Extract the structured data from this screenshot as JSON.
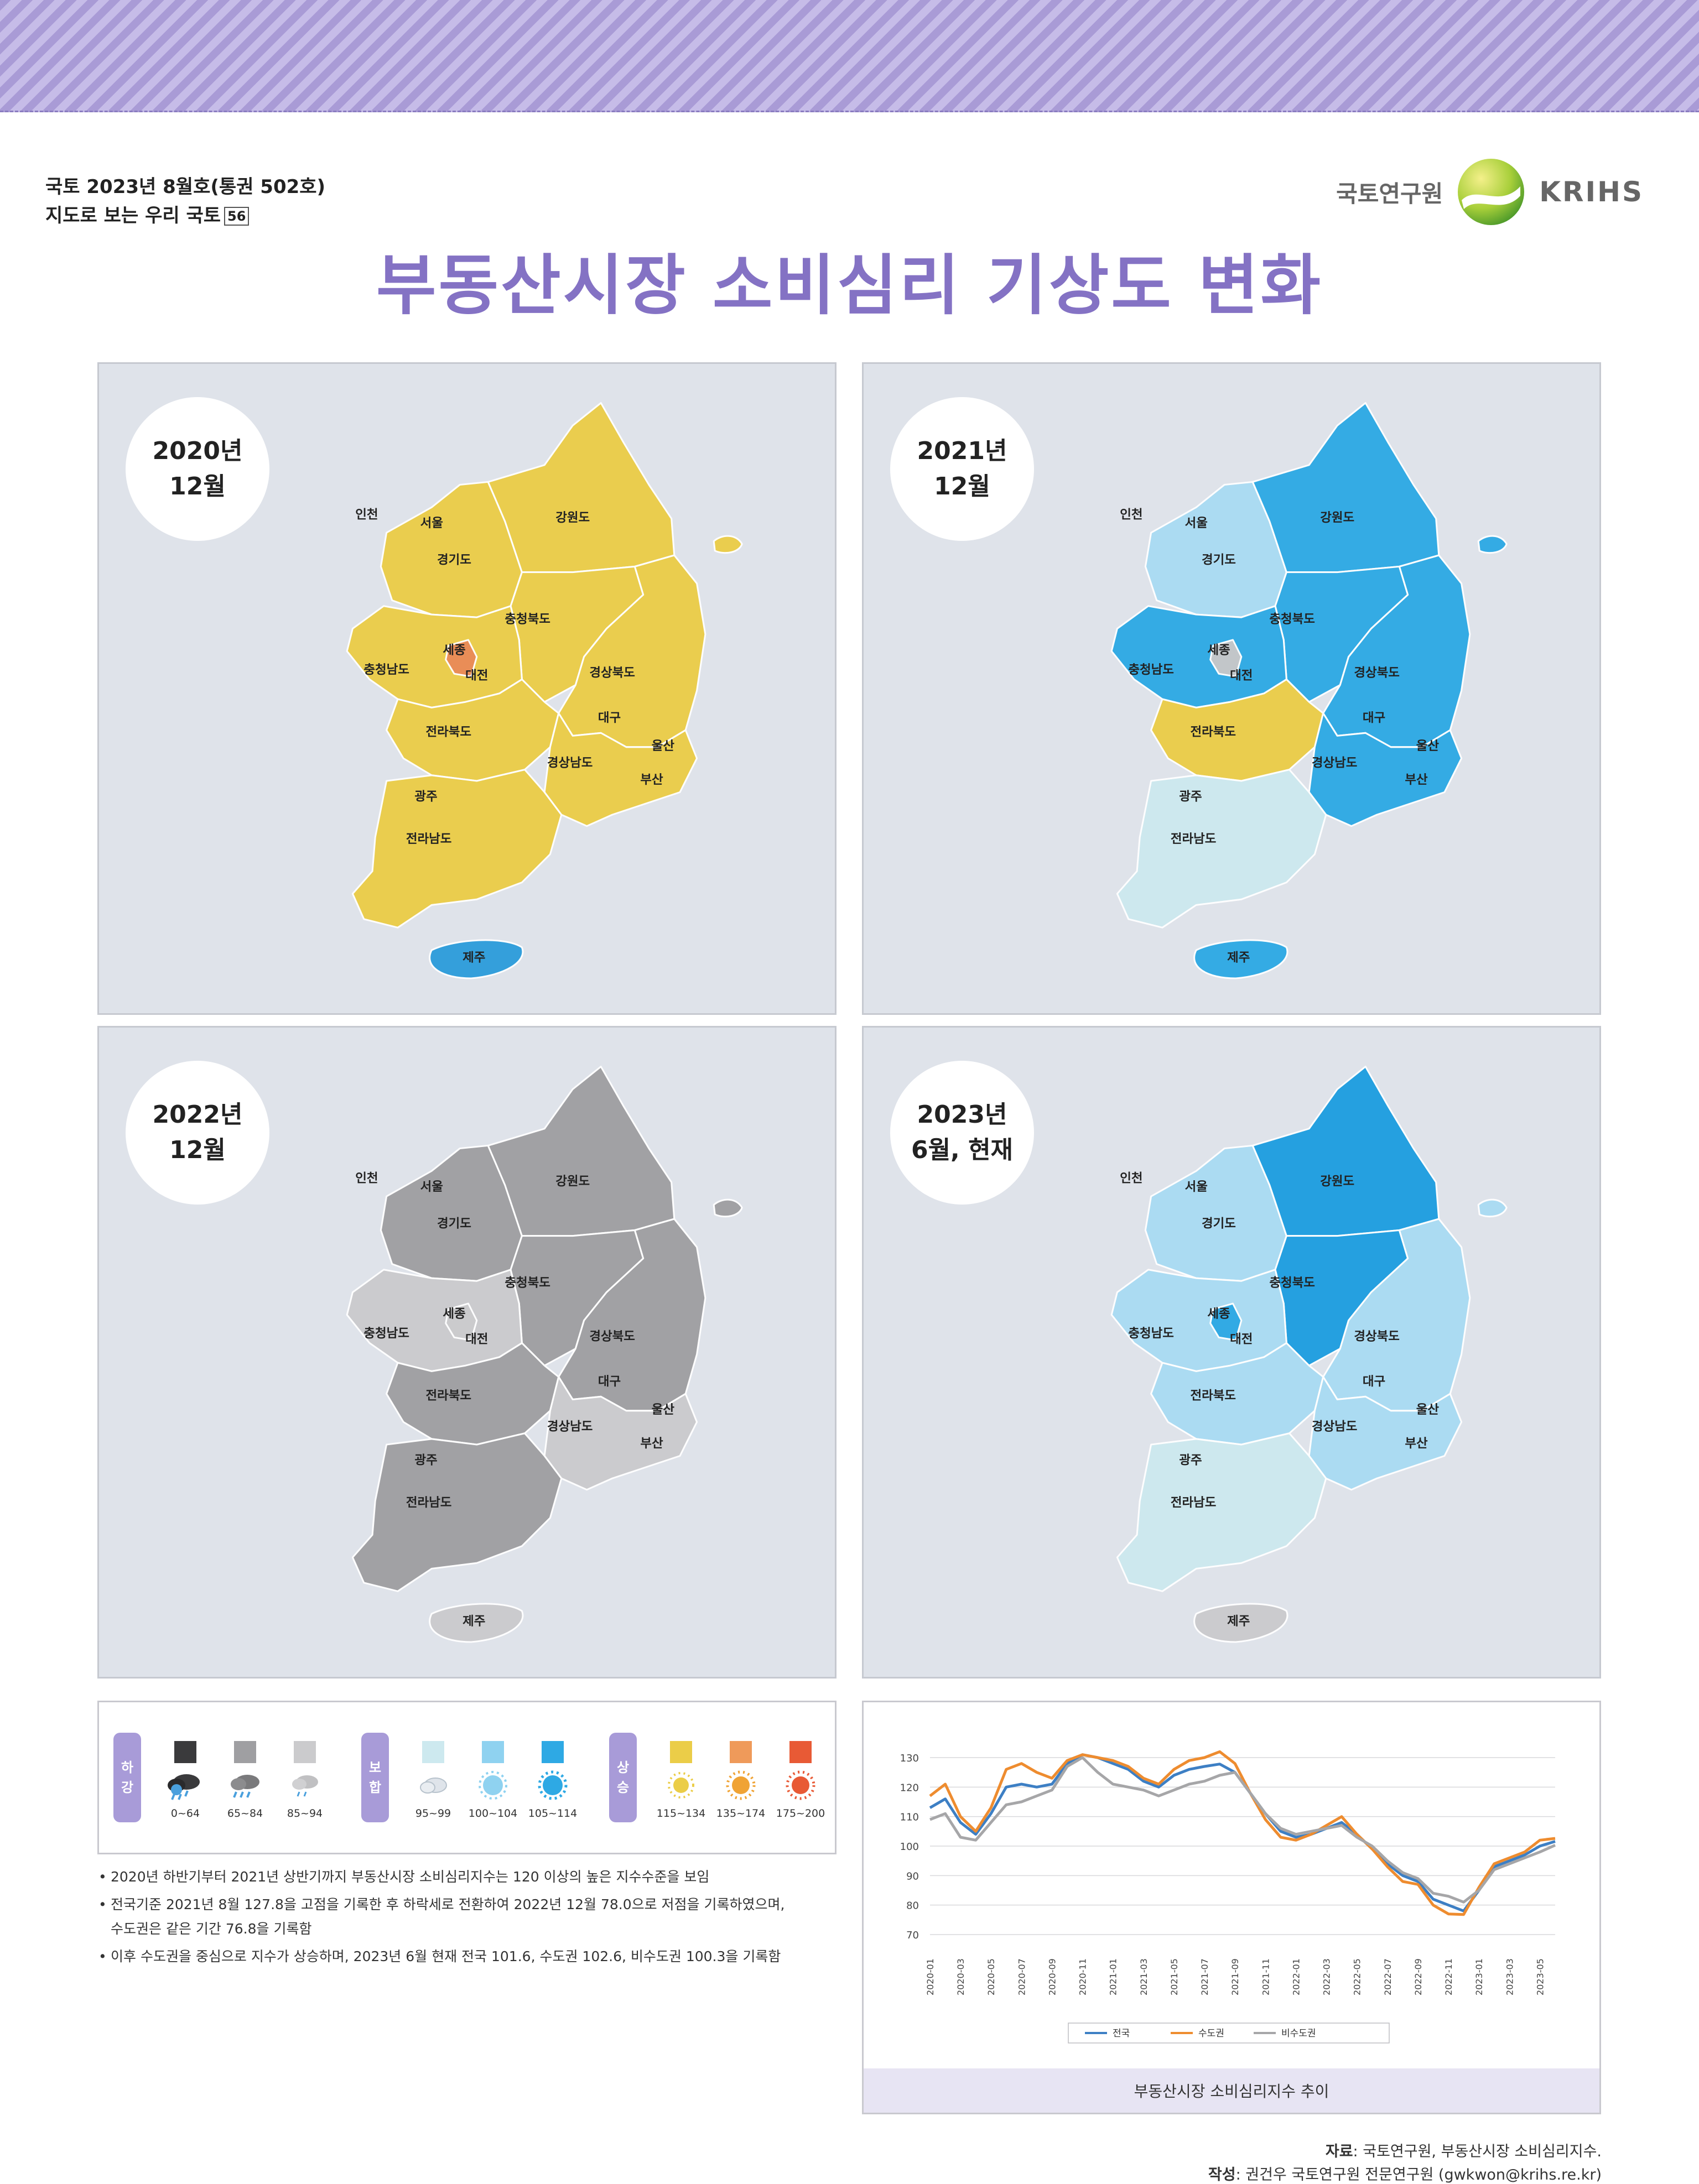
{
  "header": {
    "issue_line1": "국토 2023년 8월호(통권 502호)",
    "issue_line2": "지도로 보는 우리 국토",
    "issue_num": "56",
    "org_ko": "국토연구원",
    "org_en": "KRIHS",
    "title": "부동산시장 소비심리 기상도 변화"
  },
  "maps": [
    {
      "label_line1": "2020년",
      "label_line2": "12월",
      "regions": {
        "gyeonggi": "#ebcd48",
        "gangwon": "#ebcd48",
        "chungnam": "#ebcd48",
        "sejong": "#e98b58",
        "chungbuk": "#ebcd48",
        "gyeongbuk": "#ebcd48",
        "jeonbuk": "#ebcd48",
        "jeonnam": "#ebcd48",
        "gyeongnam": "#ebcd48",
        "jeju": "#2e9ddb",
        "ulleung": "#ebcd48"
      }
    },
    {
      "label_line1": "2021년",
      "label_line2": "12월",
      "regions": {
        "gyeonggi": "#a9dbf3",
        "gangwon": "#2ea9e4",
        "chungnam": "#2ea9e4",
        "sejong": "#c8c8c8",
        "chungbuk": "#2ea9e4",
        "gyeongbuk": "#2ea9e4",
        "jeonbuk": "#ebcd48",
        "jeonnam": "#cde9ef",
        "gyeongnam": "#2ea9e4",
        "jeju": "#2ea9e4",
        "ulleung": "#2ea9e4"
      }
    },
    {
      "label_line1": "2022년",
      "label_line2": "12월",
      "regions": {
        "gyeonggi": "#9f9fa2",
        "gangwon": "#9f9fa2",
        "chungnam": "#cbcbcd",
        "sejong": "#cbcbcd",
        "chungbuk": "#9f9fa2",
        "gyeongbuk": "#9f9fa2",
        "jeonbuk": "#9f9fa2",
        "jeonnam": "#9f9fa2",
        "gyeongnam": "#cbcbcd",
        "jeju": "#cbcbcd",
        "ulleung": "#9f9fa2"
      }
    },
    {
      "label_line1": "2023년",
      "label_line2": "6월, 현재",
      "regions": {
        "gyeonggi": "#a9dbf3",
        "gangwon": "#1e9ee0",
        "chungnam": "#a9dbf3",
        "sejong": "#2ea9e4",
        "chungbuk": "#1e9ee0",
        "gyeongbuk": "#a9dbf3",
        "jeonbuk": "#a9dbf3",
        "jeonnam": "#cde9ef",
        "gyeongnam": "#a9dbf3",
        "jeju": "#cbcbcd",
        "ulleung": "#a9dbf3"
      }
    }
  ],
  "region_names": {
    "incheon": "인천",
    "seoul": "서울",
    "gyeonggi": "경기도",
    "gangwon": "강원도",
    "chungbuk": "충청북도",
    "sejong": "세종",
    "chungnam": "충청남도",
    "daejeon": "대전",
    "gyeongbuk": "경상북도",
    "daegu": "대구",
    "jeonbuk": "전라북도",
    "ulsan": "울산",
    "gyeongnam": "경상남도",
    "busan": "부산",
    "gwangju": "광주",
    "jeonnam": "전라남도",
    "jeju": "제주"
  },
  "legend": {
    "groups": [
      {
        "tag": "하강",
        "items": [
          {
            "color": "#3a3a3c",
            "range": "0~64",
            "icon": "storm-icon"
          },
          {
            "color": "#9f9fa2",
            "range": "65~84",
            "icon": "rain-icon"
          },
          {
            "color": "#cbcbcd",
            "range": "85~94",
            "icon": "drizzle-icon"
          }
        ]
      },
      {
        "tag": "보합",
        "items": [
          {
            "color": "#cde9ef",
            "range": "95~99",
            "icon": "cloud-icon"
          },
          {
            "color": "#8fd2f0",
            "range": "100~104",
            "icon": "partly-cloudy-icon"
          },
          {
            "color": "#2ea9e4",
            "range": "105~114",
            "icon": "cloudy-sun-icon"
          }
        ]
      },
      {
        "tag": "상승",
        "items": [
          {
            "color": "#ebcd48",
            "range": "115~134",
            "icon": "sun-icon"
          },
          {
            "color": "#ef9a5a",
            "range": "135~174",
            "icon": "hot-sun-icon"
          },
          {
            "color": "#e85a35",
            "range": "175~200",
            "icon": "very-hot-sun-icon"
          }
        ]
      }
    ]
  },
  "notes": [
    "2020년 하반기부터 2021년 상반기까지 부동산시장 소비심리지수는 120 이상의 높은 지수수준을 보임",
    "전국기준 2021년 8월 127.8을 고점을 기록한 후 하락세로 전환하여 2022년 12월 78.0으로 저점을 기록하였으며,",
    "수도권은 같은 기간 76.8을 기록함",
    "이후 수도권을 중심으로 지수가 상승하며, 2023년 6월 현재 전국 101.6, 수도권 102.6, 비수도권 100.3을 기록함"
  ],
  "chart_data": {
    "type": "line",
    "title": "부동산시장 소비심리지수 추이",
    "ylim": [
      70,
      130
    ],
    "yticks": [
      70,
      80,
      90,
      100,
      110,
      120,
      130
    ],
    "x_tick_labels": [
      "2020-01",
      "2020-03",
      "2020-05",
      "2020-07",
      "2020-09",
      "2020-11",
      "2021-01",
      "2021-03",
      "2021-05",
      "2021-07",
      "2021-09",
      "2021-11",
      "2022-01",
      "2022-03",
      "2022-05",
      "2022-07",
      "2022-09",
      "2022-11",
      "2023-01",
      "2023-03",
      "2023-05"
    ],
    "x": [
      "2020-01",
      "2020-02",
      "2020-03",
      "2020-04",
      "2020-05",
      "2020-06",
      "2020-07",
      "2020-08",
      "2020-09",
      "2020-10",
      "2020-11",
      "2020-12",
      "2021-01",
      "2021-02",
      "2021-03",
      "2021-04",
      "2021-05",
      "2021-06",
      "2021-07",
      "2021-08",
      "2021-09",
      "2021-10",
      "2021-11",
      "2021-12",
      "2022-01",
      "2022-02",
      "2022-03",
      "2022-04",
      "2022-05",
      "2022-06",
      "2022-07",
      "2022-08",
      "2022-09",
      "2022-10",
      "2022-11",
      "2022-12",
      "2023-01",
      "2023-02",
      "2023-03",
      "2023-04",
      "2023-05",
      "2023-06"
    ],
    "series": [
      {
        "name": "전국",
        "color": "#3d7fc4",
        "values": [
          113,
          116,
          108,
          104,
          111,
          120,
          121,
          120,
          121,
          128,
          131,
          130,
          128,
          126,
          122,
          120,
          124,
          126,
          127,
          127.8,
          125,
          118,
          111,
          105,
          103,
          104,
          106,
          108,
          104,
          99,
          94,
          90,
          88,
          82,
          80,
          78,
          85,
          93,
          95,
          97,
          100,
          101.6
        ]
      },
      {
        "name": "수도권",
        "color": "#ee8c2f",
        "values": [
          117,
          121,
          110,
          105,
          113,
          126,
          128,
          125,
          123,
          129,
          131,
          130,
          129,
          127,
          123,
          121,
          126,
          129,
          130,
          132,
          128,
          118,
          109,
          103,
          102,
          104,
          107,
          110,
          104,
          99,
          93,
          88,
          87,
          80,
          77,
          76.8,
          86,
          94,
          96,
          98,
          102,
          102.6
        ]
      },
      {
        "name": "비수도권",
        "color": "#a6a6a8",
        "values": [
          109,
          111,
          103,
          102,
          108,
          114,
          115,
          117,
          119,
          127,
          130,
          125,
          121,
          120,
          119,
          117,
          119,
          121,
          122,
          124,
          125,
          118,
          111,
          106,
          104,
          105,
          106,
          107,
          103,
          100,
          95,
          91,
          89,
          84,
          83,
          81,
          85,
          92,
          94,
          96,
          98,
          100.3
        ]
      }
    ]
  },
  "footer": {
    "source_label": "자료",
    "source_text": ": 국토연구원, 부동산시장 소비심리지수.",
    "author_label": "작성",
    "author_text": ": 권건우 국토연구원 전문연구원 (gwkwon@krihs.re.kr)"
  }
}
